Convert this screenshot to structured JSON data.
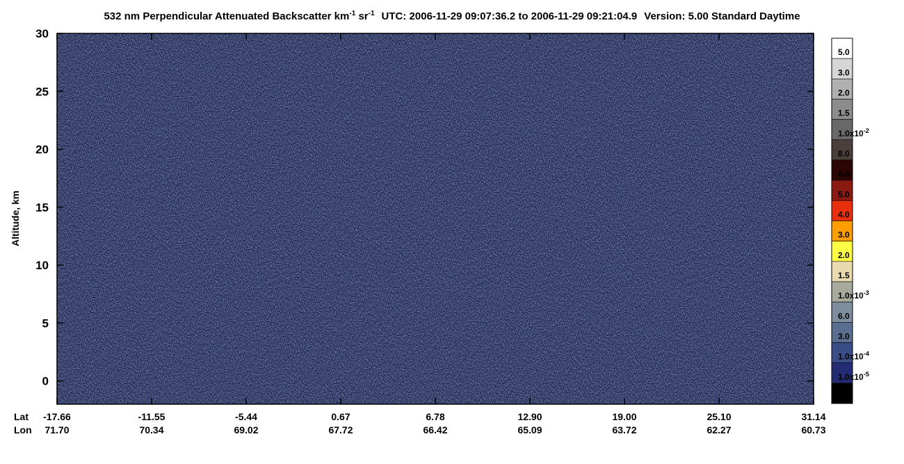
{
  "chart_data": {
    "type": "heatmap",
    "title": {
      "main": "532 nm Perpendicular Attenuated Backscatter km",
      "unit_exp1": "-1",
      "unit_sr": " sr",
      "unit_exp2": "-1",
      "time": "UTC: 2006-11-29 09:07:36.2 to 2006-11-29 09:21:04.9",
      "version": "Version: 5.00 Standard Daytime"
    },
    "y_label": "Altitude, km",
    "ylim": [
      -2,
      30
    ],
    "yticks": [
      0,
      5,
      10,
      15,
      20,
      25,
      30
    ],
    "x_row_labels": [
      "Lat",
      "Lon"
    ],
    "lat": [
      "-17.66",
      "-11.55",
      "-5.44",
      "0.67",
      "6.78",
      "12.90",
      "19.00",
      "25.10",
      "31.14"
    ],
    "lon": [
      "71.70",
      "70.34",
      "69.02",
      "67.72",
      "66.42",
      "65.09",
      "63.72",
      "62.27",
      "60.73"
    ],
    "colorbar": {
      "colors": [
        "#ffffff",
        "#d6d6d6",
        "#b0b0b0",
        "#8c8c8c",
        "#696969",
        "#4a3f3b",
        "#2e0505",
        "#8a1a12",
        "#e8300e",
        "#ff9e00",
        "#ffff44",
        "#e9dab0",
        "#a9aa9e",
        "#7f8e9e",
        "#5a6f90",
        "#3b4d86",
        "#232b72",
        "#000000"
      ],
      "labels": [
        "5.0",
        "3.0",
        "2.0",
        "1.5",
        {
          "text": "1.0x10",
          "sup": "-2"
        },
        "8.0",
        "6.0",
        "5.0",
        "4.0",
        "3.0",
        "2.0",
        "1.5",
        {
          "text": "1.0x10",
          "sup": "-3"
        },
        "6.0",
        "3.0",
        {
          "text": "1.0x10",
          "sup": "-4"
        },
        {
          "text": "1.0x10",
          "sup": "-5"
        }
      ]
    }
  }
}
